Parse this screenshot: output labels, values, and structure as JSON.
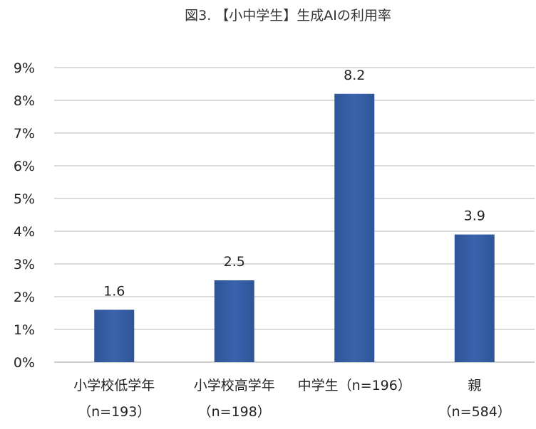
{
  "chart_data": {
    "type": "bar",
    "title": "図3. 【小中学生】生成AIの利用率",
    "xlabel": "",
    "ylabel": "",
    "categories": [
      {
        "line1": "小学校低学年",
        "line2": "（n=193）"
      },
      {
        "line1": "小学校高学年",
        "line2": "（n=198）"
      },
      {
        "line1": "中学生（n=196）",
        "line2": ""
      },
      {
        "line1": "親",
        "line2": "（n=584）"
      }
    ],
    "values": [
      1.6,
      2.5,
      8.2,
      3.9
    ],
    "data_labels": [
      "1.6",
      "2.5",
      "8.2",
      "3.9"
    ],
    "ylim": [
      0,
      9
    ],
    "yticks": [
      0,
      1,
      2,
      3,
      4,
      5,
      6,
      7,
      8,
      9
    ],
    "ytick_labels": [
      "0%",
      "1%",
      "2%",
      "3%",
      "4%",
      "5%",
      "6%",
      "7%",
      "8%",
      "9%"
    ],
    "grid": true,
    "legend": "none",
    "bar_color": "#2f5597",
    "bar_color_light": "#3a63ad"
  }
}
